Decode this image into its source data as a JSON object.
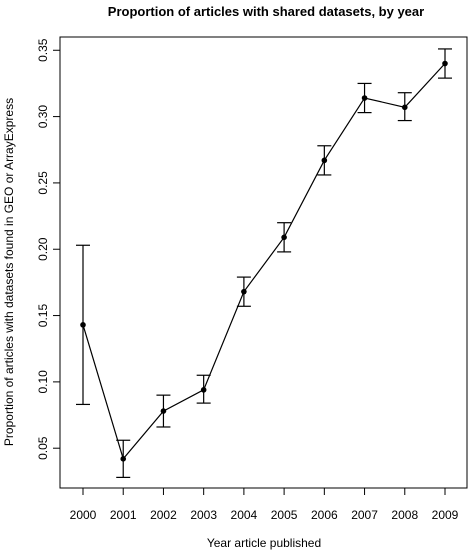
{
  "chart_data": {
    "type": "line",
    "title": "Proportion of articles with shared datasets, by year",
    "xlabel": "Year article published",
    "ylabel": "Proportion of articles with datasets found in GEO or ArrayExpress",
    "x": [
      "2000",
      "2001",
      "2002",
      "2003",
      "2004",
      "2005",
      "2006",
      "2007",
      "2008",
      "2009"
    ],
    "series": [
      {
        "values": [
          0.143,
          0.042,
          0.078,
          0.094,
          0.168,
          0.209,
          0.267,
          0.314,
          0.307,
          0.34
        ],
        "lower": [
          0.083,
          0.028,
          0.066,
          0.084,
          0.157,
          0.198,
          0.256,
          0.303,
          0.297,
          0.329
        ],
        "upper": [
          0.203,
          0.056,
          0.09,
          0.105,
          0.179,
          0.22,
          0.278,
          0.325,
          0.318,
          0.351
        ]
      }
    ],
    "yticks": [
      "0.05",
      "0.10",
      "0.15",
      "0.20",
      "0.25",
      "0.30",
      "0.35"
    ],
    "ylim": [
      0.02,
      0.36
    ],
    "grid": false,
    "legend": "none"
  }
}
